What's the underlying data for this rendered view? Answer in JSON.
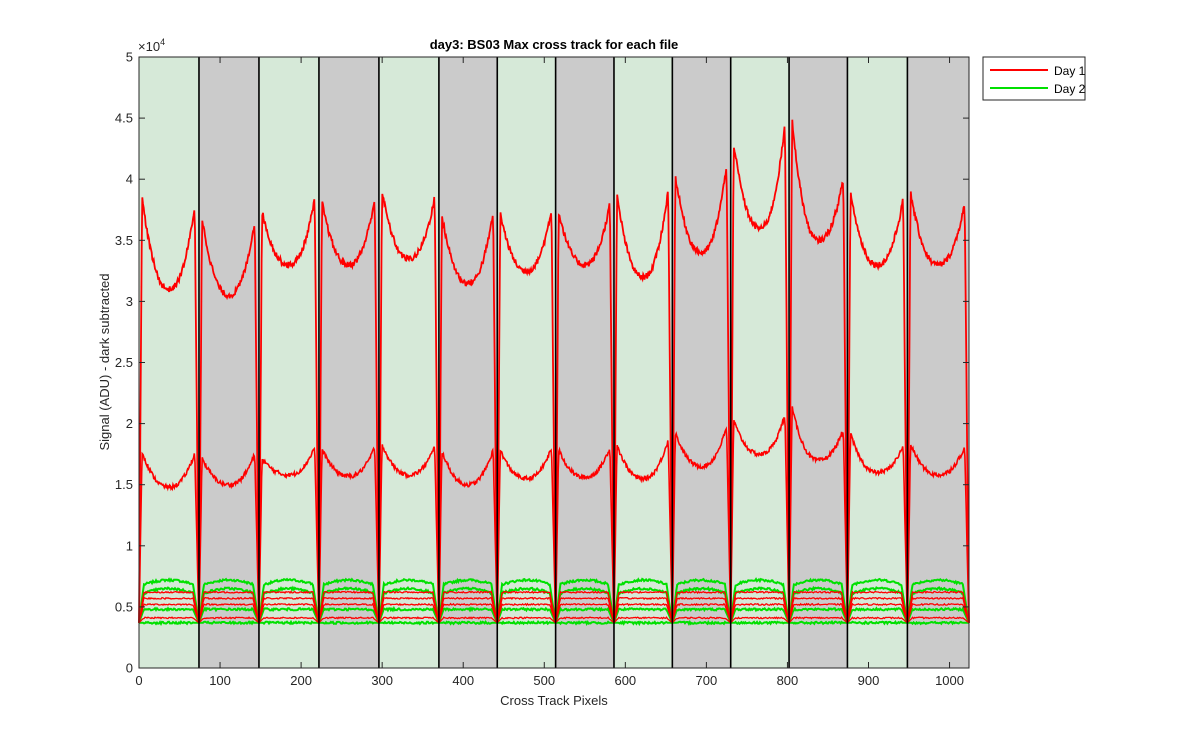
{
  "chart_data": {
    "type": "line",
    "title": "day3: BS03  Max cross track for each file",
    "xlabel": "Cross Track Pixels",
    "ylabel": "Signal (ADU) - dark subtracted",
    "exponent_label": "×10",
    "exponent_power": "4",
    "xlim": [
      0,
      1024
    ],
    "ylim": [
      0,
      50000
    ],
    "x_ticks": [
      0,
      100,
      200,
      300,
      400,
      500,
      600,
      700,
      800,
      900,
      1000
    ],
    "y_ticks": [
      0,
      0.5,
      1,
      1.5,
      2,
      2.5,
      3,
      3.5,
      4,
      4.5,
      5
    ],
    "grid": false,
    "legend_position": "outside-top-right",
    "background_colors": {
      "green": "#d6e9d8",
      "gray": "#cbcbcb"
    },
    "segments": [
      {
        "start": 0,
        "end": 74,
        "bg": "green"
      },
      {
        "start": 74,
        "end": 148,
        "bg": "gray"
      },
      {
        "start": 148,
        "end": 222,
        "bg": "green"
      },
      {
        "start": 222,
        "end": 296,
        "bg": "gray"
      },
      {
        "start": 296,
        "end": 370,
        "bg": "green"
      },
      {
        "start": 370,
        "end": 442,
        "bg": "gray"
      },
      {
        "start": 442,
        "end": 514,
        "bg": "green"
      },
      {
        "start": 514,
        "end": 586,
        "bg": "gray"
      },
      {
        "start": 586,
        "end": 658,
        "bg": "green"
      },
      {
        "start": 658,
        "end": 730,
        "bg": "gray"
      },
      {
        "start": 730,
        "end": 802,
        "bg": "green"
      },
      {
        "start": 802,
        "end": 874,
        "bg": "gray"
      },
      {
        "start": 874,
        "end": 948,
        "bg": "green"
      },
      {
        "start": 948,
        "end": 1024,
        "bg": "gray"
      }
    ],
    "series": [
      {
        "name": "Day 1",
        "color": "#ff0000",
        "profiles": [
          {
            "edge_left": 40500,
            "center": 31000,
            "edge_right": 40500
          },
          {
            "edge_left": 38500,
            "center": 30500,
            "edge_right": 39000
          },
          {
            "edge_left": 38500,
            "center": 33000,
            "edge_right": 40500
          },
          {
            "edge_left": 39500,
            "center": 33000,
            "edge_right": 40500
          },
          {
            "edge_left": 40500,
            "center": 33500,
            "edge_right": 40500
          },
          {
            "edge_left": 38500,
            "center": 31500,
            "edge_right": 39500
          },
          {
            "edge_left": 38500,
            "center": 32500,
            "edge_right": 39500
          },
          {
            "edge_left": 38500,
            "center": 33000,
            "edge_right": 40000
          },
          {
            "edge_left": 40500,
            "center": 32000,
            "edge_right": 42000
          },
          {
            "edge_left": 42000,
            "center": 34000,
            "edge_right": 44000
          },
          {
            "edge_left": 44800,
            "center": 36000,
            "edge_right": 47800
          },
          {
            "edge_left": 47500,
            "center": 35000,
            "edge_right": 42000
          },
          {
            "edge_left": 40500,
            "center": 33000,
            "edge_right": 40500
          },
          {
            "edge_left": 40500,
            "center": 33000,
            "edge_right": 40000
          }
        ],
        "mid_profiles": [
          {
            "edge_left": 18500,
            "center": 14800,
            "edge_right": 18700
          },
          {
            "edge_left": 17800,
            "center": 15000,
            "edge_right": 18500
          },
          {
            "edge_left": 17500,
            "center": 15800,
            "edge_right": 19000
          },
          {
            "edge_left": 18500,
            "center": 15700,
            "edge_right": 19000
          },
          {
            "edge_left": 19000,
            "center": 15800,
            "edge_right": 19000
          },
          {
            "edge_left": 18500,
            "center": 15000,
            "edge_right": 19000
          },
          {
            "edge_left": 18500,
            "center": 15500,
            "edge_right": 19000
          },
          {
            "edge_left": 18500,
            "center": 15600,
            "edge_right": 19000
          },
          {
            "edge_left": 19000,
            "center": 15500,
            "edge_right": 20000
          },
          {
            "edge_left": 20000,
            "center": 16500,
            "edge_right": 21000
          },
          {
            "edge_left": 21000,
            "center": 17500,
            "edge_right": 22000
          },
          {
            "edge_left": 22500,
            "center": 17000,
            "edge_right": 20500
          },
          {
            "edge_left": 20000,
            "center": 16000,
            "edge_right": 19000
          },
          {
            "edge_left": 19000,
            "center": 15800,
            "edge_right": 19000
          }
        ],
        "low_levels": [
          6200,
          5700,
          5200,
          4100
        ]
      },
      {
        "name": "Day 2",
        "color": "#00e000",
        "low_levels": [
          6700,
          6000,
          4800,
          3700
        ]
      }
    ]
  }
}
